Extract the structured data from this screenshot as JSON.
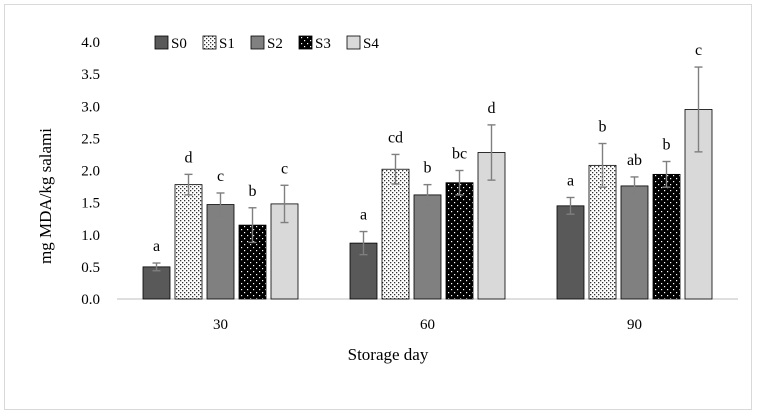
{
  "chart_data": {
    "type": "bar",
    "title": "",
    "xlabel": "Storage day",
    "ylabel": "mg MDA/kg salami",
    "categories": [
      "30",
      "60",
      "90"
    ],
    "ylim": [
      0,
      4.0
    ],
    "yticks": [
      "0.0",
      "0.5",
      "1.0",
      "1.5",
      "2.0",
      "2.5",
      "3.0",
      "3.5",
      "4.0"
    ],
    "legend_position": "top-left",
    "series": [
      {
        "name": "S0",
        "pattern": "dark-grey",
        "values": [
          0.5,
          0.87,
          1.45
        ],
        "errors": [
          0.06,
          0.18,
          0.13
        ],
        "letters": [
          "a",
          "a",
          "a"
        ]
      },
      {
        "name": "S1",
        "pattern": "dotted-white",
        "values": [
          1.78,
          2.02,
          2.08
        ],
        "errors": [
          0.16,
          0.23,
          0.34
        ],
        "letters": [
          "d",
          "cd",
          "b"
        ]
      },
      {
        "name": "S2",
        "pattern": "grey",
        "values": [
          1.47,
          1.62,
          1.76
        ],
        "errors": [
          0.18,
          0.16,
          0.14
        ],
        "letters": [
          "c",
          "b",
          "ab"
        ]
      },
      {
        "name": "S3",
        "pattern": "dotted-black",
        "values": [
          1.15,
          1.81,
          1.94
        ],
        "errors": [
          0.27,
          0.19,
          0.2
        ],
        "letters": [
          "b",
          "bc",
          "b"
        ]
      },
      {
        "name": "S4",
        "pattern": "light-grey",
        "values": [
          1.48,
          2.28,
          2.95
        ],
        "errors": [
          0.29,
          0.43,
          0.66
        ],
        "letters": [
          "c",
          "d",
          "c"
        ]
      }
    ]
  }
}
